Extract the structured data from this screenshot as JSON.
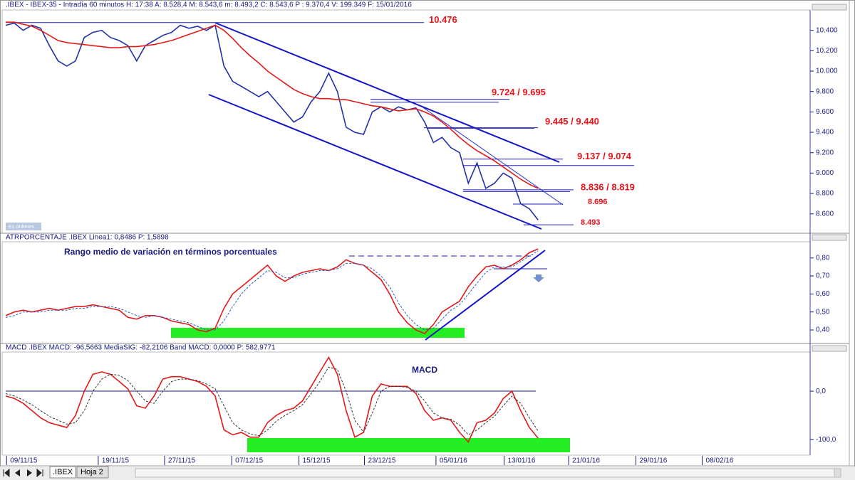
{
  "chart_data": [
    {
      "type": "line",
      "title": ".IBEX - IBEX-35 - Intradía 60 minutos H: 17:38 A: 8.528,4 M: 8.543,6 m: 8.493,2 C: 8.543,6 P : 9.370,4 V: 199.349 F: 15/01/2016",
      "x": [
        0,
        1,
        2,
        3,
        4,
        5,
        6,
        7,
        8,
        9,
        10,
        11,
        12,
        13,
        14,
        15,
        16,
        17,
        18,
        19,
        20,
        21,
        22,
        23,
        24,
        25,
        26,
        27,
        28,
        29,
        30,
        31,
        32,
        33,
        34,
        35,
        36,
        37,
        38,
        39,
        40,
        41,
        42,
        43,
        44,
        45,
        46,
        47,
        48,
        49,
        50,
        51,
        52,
        53,
        54,
        55,
        56,
        57,
        58,
        59,
        60,
        61
      ],
      "xlim": [
        0,
        92
      ],
      "series": [
        {
          "color": "#2233aa",
          "values": [
            10450,
            10470,
            10400,
            10450,
            10420,
            10250,
            10100,
            10050,
            10100,
            10330,
            10380,
            10400,
            10330,
            10300,
            10250,
            10100,
            10250,
            10300,
            10350,
            10380,
            10450,
            10420,
            10440,
            10400,
            10450,
            10050,
            9900,
            9850,
            9800,
            9750,
            9800,
            9700,
            9600,
            9500,
            9550,
            9700,
            9800,
            9980,
            9800,
            9450,
            9400,
            9380,
            9600,
            9650,
            9600,
            9650,
            9620,
            9640,
            9500,
            9300,
            9350,
            9250,
            9200,
            8900,
            9100,
            8850,
            8900,
            9000,
            8950,
            8700,
            8650,
            8540
          ]
        },
        {
          "color": "#e31a1a",
          "values": [
            10480,
            10480,
            10460,
            10440,
            10400,
            10350,
            10300,
            10280,
            10270,
            10260,
            10250,
            10240,
            10230,
            10230,
            10240,
            10240,
            10250,
            10260,
            10280,
            10300,
            10330,
            10360,
            10390,
            10420,
            10450,
            10400,
            10320,
            10230,
            10150,
            10080,
            10000,
            9940,
            9880,
            9820,
            9780,
            9750,
            9730,
            9730,
            9720,
            9720,
            9700,
            9680,
            9660,
            9650,
            9630,
            9610,
            9620,
            9630,
            9600,
            9560,
            9500,
            9430,
            9350,
            9280,
            9220,
            9170,
            9120,
            9060,
            9000,
            8940,
            8890,
            8850
          ]
        }
      ],
      "ylim": [
        8410,
        10600
      ],
      "yticks": [
        {
          "value": 10400,
          "label": "10.400"
        },
        {
          "value": 10200,
          "label": "10.200"
        },
        {
          "value": 10000,
          "label": "10.000"
        },
        {
          "value": 9800,
          "label": "9.800"
        },
        {
          "value": 9600,
          "label": "9.600"
        },
        {
          "value": 9400,
          "label": "9.400"
        },
        {
          "value": 9200,
          "label": "9.200"
        },
        {
          "value": 9000,
          "label": "9.000"
        },
        {
          "value": 8800,
          "label": "8.800"
        },
        {
          "value": 8600,
          "label": "8.600"
        }
      ],
      "levels": [
        {
          "label": "10.476",
          "values": [
            10476
          ]
        },
        {
          "label": "9.724 / 9.695",
          "values": [
            9724,
            9695
          ]
        },
        {
          "label": "9.445 / 9.440",
          "values": [
            9445,
            9440
          ]
        },
        {
          "label": "9.137 / 9.074",
          "values": [
            9137,
            9074
          ]
        },
        {
          "label": "8.836 / 8.819",
          "values": [
            8836,
            8819
          ]
        },
        {
          "label": "8.696",
          "values": [
            8696
          ]
        },
        {
          "label": "8.493",
          "values": [
            8493
          ]
        }
      ],
      "annotations": [
        "En órdenes"
      ]
    },
    {
      "type": "line",
      "title": "ATRPORCENTAJE .IBEX Linea1: 0,8486 P: 1,5898",
      "subtitle": "Rango medio de variación en términos porcentuales",
      "x": [
        0,
        1,
        2,
        3,
        4,
        5,
        6,
        7,
        8,
        9,
        10,
        11,
        12,
        13,
        14,
        15,
        16,
        17,
        18,
        19,
        20,
        21,
        22,
        23,
        24,
        25,
        26,
        27,
        28,
        29,
        30,
        31,
        32,
        33,
        34,
        35,
        36,
        37,
        38,
        39,
        40,
        41,
        42,
        43,
        44,
        45,
        46,
        47,
        48,
        49,
        50,
        51,
        52,
        53,
        54,
        55,
        56,
        57,
        58,
        59,
        60,
        61
      ],
      "xlim": [
        0,
        92
      ],
      "series": [
        {
          "color": "#e31a1a",
          "values": [
            0.48,
            0.5,
            0.51,
            0.5,
            0.51,
            0.52,
            0.51,
            0.52,
            0.53,
            0.53,
            0.54,
            0.53,
            0.52,
            0.51,
            0.47,
            0.46,
            0.48,
            0.48,
            0.47,
            0.45,
            0.44,
            0.43,
            0.4,
            0.39,
            0.41,
            0.52,
            0.6,
            0.64,
            0.68,
            0.72,
            0.76,
            0.7,
            0.67,
            0.7,
            0.72,
            0.73,
            0.74,
            0.73,
            0.75,
            0.79,
            0.77,
            0.76,
            0.72,
            0.68,
            0.6,
            0.5,
            0.44,
            0.4,
            0.38,
            0.43,
            0.5,
            0.53,
            0.56,
            0.64,
            0.7,
            0.75,
            0.76,
            0.74,
            0.76,
            0.79,
            0.83,
            0.85
          ]
        },
        {
          "color": "#3060c0",
          "dashed": true,
          "values": [
            0.47,
            0.48,
            0.5,
            0.5,
            0.5,
            0.51,
            0.51,
            0.51,
            0.52,
            0.52,
            0.53,
            0.53,
            0.53,
            0.52,
            0.5,
            0.48,
            0.47,
            0.48,
            0.47,
            0.46,
            0.45,
            0.44,
            0.42,
            0.4,
            0.4,
            0.45,
            0.53,
            0.6,
            0.65,
            0.69,
            0.73,
            0.72,
            0.69,
            0.69,
            0.71,
            0.72,
            0.73,
            0.73,
            0.74,
            0.77,
            0.77,
            0.76,
            0.74,
            0.7,
            0.64,
            0.55,
            0.48,
            0.43,
            0.4,
            0.41,
            0.46,
            0.51,
            0.54,
            0.6,
            0.66,
            0.72,
            0.75,
            0.75,
            0.75,
            0.78,
            0.81,
            0.84
          ]
        }
      ],
      "ylim": [
        0.325,
        0.89
      ],
      "yticks": [
        {
          "value": 0.8,
          "label": "0,80"
        },
        {
          "value": 0.7,
          "label": "0,70"
        },
        {
          "value": 0.6,
          "label": "0,60"
        },
        {
          "value": 0.5,
          "label": "0,50"
        },
        {
          "value": 0.4,
          "label": "0,40"
        }
      ]
    },
    {
      "type": "line",
      "title": "MACD .IBEX MACD: -96,5663 MediaSIG: -82,2106 Band MACD: 0,0000 P: 582,9771",
      "subtitle": "MACD",
      "x": [
        0,
        1,
        2,
        3,
        4,
        5,
        6,
        7,
        8,
        9,
        10,
        11,
        12,
        13,
        14,
        15,
        16,
        17,
        18,
        19,
        20,
        21,
        22,
        23,
        24,
        25,
        26,
        27,
        28,
        29,
        30,
        31,
        32,
        33,
        34,
        35,
        36,
        37,
        38,
        39,
        40,
        41,
        42,
        43,
        44,
        45,
        46,
        47,
        48,
        49,
        50,
        51,
        52,
        53,
        54,
        55,
        56,
        57,
        58,
        59,
        60,
        61
      ],
      "xlim": [
        0,
        92
      ],
      "xticks": [
        {
          "value": 0.1,
          "label": "09/11/15"
        },
        {
          "value": 10.6,
          "label": "19/11/15"
        },
        {
          "value": 18.2,
          "label": "27/11/15"
        },
        {
          "value": 25.9,
          "label": "07/12/15"
        },
        {
          "value": 33.6,
          "label": "15/12/15"
        },
        {
          "value": 41.1,
          "label": "23/12/15"
        },
        {
          "value": 49.3,
          "label": "05/01/16"
        },
        {
          "value": 57.1,
          "label": "13/01/16"
        },
        {
          "value": 64.5,
          "label": "21/01/16"
        },
        {
          "value": 72.2,
          "label": "29/01/16"
        },
        {
          "value": 79.8,
          "label": "08/02/16"
        }
      ],
      "series": [
        {
          "color": "#e31a1a",
          "values": [
            -10,
            -15,
            -25,
            -40,
            -55,
            -65,
            -70,
            -75,
            -50,
            0,
            35,
            40,
            35,
            20,
            5,
            -30,
            -35,
            -10,
            25,
            30,
            30,
            25,
            20,
            10,
            -10,
            -80,
            -90,
            -85,
            -95,
            -95,
            -65,
            -50,
            -40,
            -35,
            -20,
            10,
            40,
            70,
            35,
            -40,
            -95,
            -85,
            -10,
            15,
            10,
            10,
            10,
            -5,
            -40,
            -60,
            -55,
            -60,
            -85,
            -105,
            -65,
            -60,
            -45,
            -15,
            0,
            -40,
            -75,
            -97
          ]
        },
        {
          "color": "#333333",
          "dashed": true,
          "values": [
            -5,
            -10,
            -18,
            -28,
            -40,
            -52,
            -60,
            -68,
            -65,
            -40,
            0,
            25,
            35,
            33,
            22,
            0,
            -20,
            -25,
            0,
            20,
            25,
            25,
            22,
            15,
            5,
            -30,
            -65,
            -80,
            -88,
            -92,
            -80,
            -62,
            -50,
            -40,
            -28,
            -5,
            20,
            50,
            45,
            0,
            -60,
            -85,
            -45,
            0,
            10,
            10,
            8,
            0,
            -20,
            -45,
            -55,
            -58,
            -70,
            -90,
            -80,
            -65,
            -52,
            -30,
            -10,
            -25,
            -55,
            -82
          ]
        }
      ],
      "ylim": [
        -132,
        81
      ],
      "yticks": [
        {
          "value": 0,
          "label": "0,0"
        },
        {
          "value": -100,
          "label": "-100,0"
        }
      ]
    }
  ],
  "tabs": [
    ".IBEX",
    "Hoja 2"
  ]
}
